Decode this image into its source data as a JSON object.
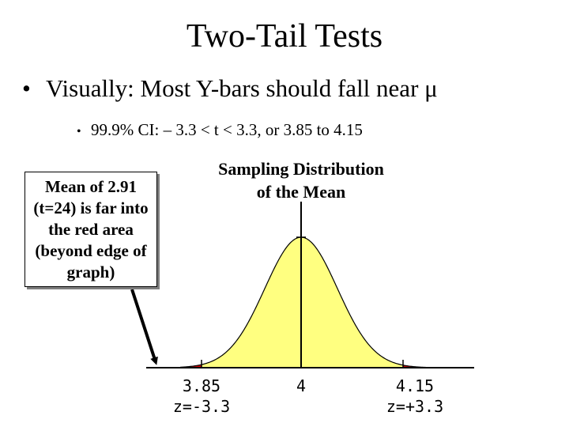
{
  "slide": {
    "title": "Two-Tail Tests",
    "bullet1": {
      "text": "Visually: Most Y-bars should fall near μ"
    },
    "bullet2": {
      "text": "99.9% CI:  – 3.3 < t < 3.3, or 3.85 to 4.15"
    }
  },
  "callout": {
    "text": "Mean of 2.91 (t=24) is far into the red area (beyond edge of graph)"
  },
  "diagram": {
    "title_line1": "Sampling Distribution",
    "title_line2": "of the Mean",
    "labels": {
      "left_value": "3.85",
      "left_z": "z=-3.3",
      "center_value": "4",
      "right_value": "4.15",
      "right_z": "z=+3.3"
    },
    "colors": {
      "curve_fill": "#ffff80",
      "tail_fill": "#cc0000",
      "outline": "#000000"
    }
  }
}
